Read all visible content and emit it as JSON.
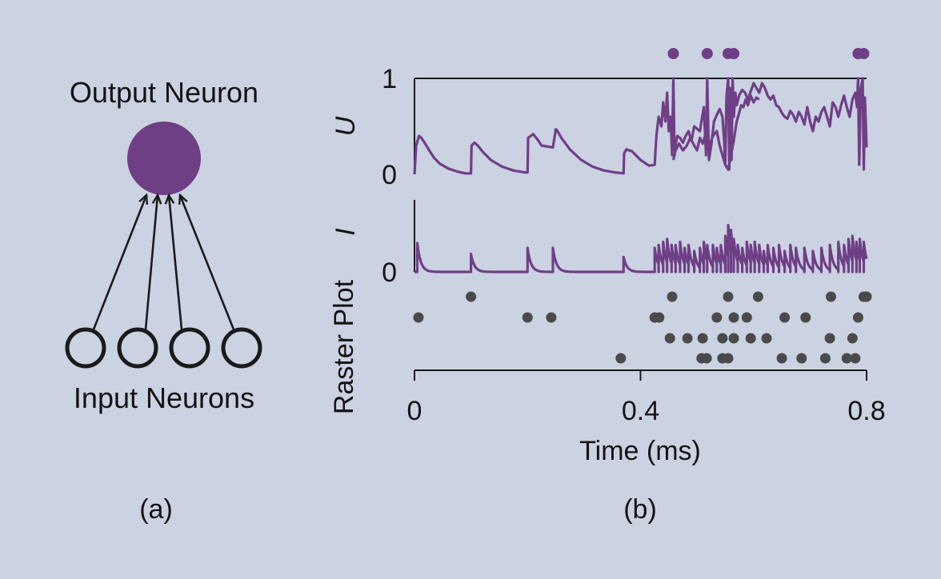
{
  "panel_a": {
    "output_label": "Output Neuron",
    "input_label": "Input Neurons",
    "caption": "(a)",
    "input_neuron_count": 4,
    "output_color": "#6e3f84",
    "line_color": "#1a1a1a"
  },
  "panel_b": {
    "caption": "(b)",
    "trace_color": "#6f3f86",
    "raster_color": "#4a4a4a"
  },
  "chart_data": [
    {
      "type": "line",
      "ylabel": "U",
      "xlim": [
        0,
        0.8
      ],
      "ylim": [
        0,
        1
      ],
      "yticks": [
        "0",
        "1"
      ],
      "output_spikes": [
        0.458,
        0.518,
        0.555,
        0.565,
        0.785,
        0.795
      ],
      "series": [
        {
          "x": [
            0,
            0.003,
            0.008,
            0.012,
            0.018,
            0.026,
            0.035,
            0.045,
            0.06,
            0.075,
            0.09,
            0.1,
            0.101,
            0.106,
            0.112,
            0.12,
            0.135,
            0.155,
            0.175,
            0.195,
            0.2,
            0.201,
            0.21,
            0.218,
            0.225,
            0.245,
            0.25,
            0.252,
            0.26,
            0.275,
            0.295,
            0.315,
            0.335,
            0.355,
            0.37,
            0.371,
            0.375,
            0.385,
            0.4,
            0.415,
            0.425,
            0.428,
            0.432,
            0.437,
            0.44,
            0.444,
            0.447,
            0.45,
            0.453,
            0.456,
            0.458,
            0.46,
            0.465,
            0.47,
            0.475,
            0.48,
            0.485,
            0.49,
            0.495,
            0.505,
            0.512,
            0.516,
            0.518,
            0.521,
            0.525,
            0.53,
            0.535,
            0.54,
            0.545,
            0.548,
            0.55,
            0.552,
            0.555,
            0.557,
            0.559,
            0.561,
            0.563,
            0.565,
            0.568,
            0.57,
            0.575,
            0.58,
            0.585,
            0.59,
            0.6,
            0.605,
            0.61,
            0.615,
            0.62,
            0.625,
            0.63,
            0.635,
            0.64,
            0.645,
            0.65,
            0.655,
            0.66,
            0.665,
            0.67,
            0.675,
            0.68,
            0.685,
            0.69,
            0.695,
            0.7,
            0.705,
            0.71,
            0.715,
            0.72,
            0.725,
            0.73,
            0.735,
            0.74,
            0.745,
            0.75,
            0.755,
            0.76,
            0.765,
            0.77,
            0.775,
            0.78,
            0.783,
            0.785,
            0.787,
            0.79,
            0.793,
            0.795,
            0.797,
            0.8
          ],
          "y": [
            0,
            0.3,
            0.4,
            0.38,
            0.33,
            0.25,
            0.17,
            0.11,
            0.06,
            0.03,
            0.01,
            0.01,
            0.3,
            0.33,
            0.3,
            0.24,
            0.15,
            0.08,
            0.04,
            0.02,
            0.02,
            0.38,
            0.42,
            0.36,
            0.3,
            0.28,
            0.47,
            0.46,
            0.38,
            0.26,
            0.15,
            0.08,
            0.04,
            0.02,
            0.01,
            0.22,
            0.26,
            0.24,
            0.15,
            0.09,
            0.1,
            0.4,
            0.6,
            0.5,
            0.75,
            0.55,
            0.85,
            0.45,
            0.6,
            0.2,
            1.0,
            0.25,
            0.4,
            0.38,
            0.33,
            0.4,
            0.45,
            0.35,
            0.5,
            0.45,
            0.7,
            0.2,
            1.0,
            0.15,
            0.3,
            0.55,
            0.62,
            0.68,
            0.6,
            0.35,
            0.1,
            0.8,
            1.0,
            0.05,
            0.9,
            0.15,
            1.0,
            0.6,
            0.85,
            0.72,
            0.83,
            0.88,
            0.85,
            0.78,
            0.95,
            0.9,
            0.85,
            0.95,
            0.9,
            0.82,
            0.78,
            0.82,
            0.72,
            0.7,
            0.64,
            0.6,
            0.58,
            0.66,
            0.62,
            0.55,
            0.65,
            0.6,
            0.52,
            0.7,
            0.55,
            0.45,
            0.6,
            0.55,
            0.65,
            0.7,
            0.6,
            0.5,
            0.75,
            0.7,
            0.6,
            0.72,
            0.82,
            0.7,
            0.6,
            0.78,
            0.85,
            0.7,
            1.0,
            0.1,
            0.9,
            1.0,
            0.05,
            0.8,
            0.28
          ]
        },
        {
          "x": [
            0.458,
            0.462,
            0.468,
            0.475,
            0.482,
            0.488,
            0.495,
            0.5,
            0.505,
            0.51,
            0.515,
            0.518,
            0.522,
            0.528,
            0.535,
            0.54,
            0.545,
            0.55,
            0.555,
            0.56,
            0.565,
            0.57,
            0.575,
            0.578,
            0.582,
            0.586,
            0.59,
            0.595,
            0.6,
            0.605,
            0.61
          ],
          "y": [
            0.15,
            0.25,
            0.32,
            0.25,
            0.3,
            0.38,
            0.3,
            0.25,
            0.38,
            0.32,
            0.42,
            0.35,
            0.3,
            0.4,
            0.45,
            0.3,
            0.2,
            0.1,
            0.05,
            0.2,
            0.35,
            0.55,
            0.65,
            0.72,
            0.7,
            0.78,
            0.72,
            0.82,
            0.75,
            0.8,
            0.78
          ]
        }
      ]
    },
    {
      "type": "line",
      "ylabel": "I",
      "xlim": [
        0,
        0.8
      ],
      "yticks": [
        "0"
      ],
      "ylim": [
        0,
        1
      ],
      "pulses": [
        {
          "t": 0.005,
          "a": 0.48
        },
        {
          "t": 0.1,
          "a": 0.3
        },
        {
          "t": 0.2,
          "a": 0.4
        },
        {
          "t": 0.245,
          "a": 0.4
        },
        {
          "t": 0.37,
          "a": 0.25
        },
        {
          "t": 0.425,
          "a": 0.4
        },
        {
          "t": 0.432,
          "a": 0.45
        },
        {
          "t": 0.44,
          "a": 0.5
        },
        {
          "t": 0.447,
          "a": 0.55
        },
        {
          "t": 0.455,
          "a": 0.45
        },
        {
          "t": 0.462,
          "a": 0.45
        },
        {
          "t": 0.47,
          "a": 0.5
        },
        {
          "t": 0.478,
          "a": 0.4
        },
        {
          "t": 0.485,
          "a": 0.45
        },
        {
          "t": 0.495,
          "a": 0.35
        },
        {
          "t": 0.505,
          "a": 0.4
        },
        {
          "t": 0.512,
          "a": 0.5
        },
        {
          "t": 0.518,
          "a": 0.45
        },
        {
          "t": 0.528,
          "a": 0.45
        },
        {
          "t": 0.535,
          "a": 0.4
        },
        {
          "t": 0.542,
          "a": 0.45
        },
        {
          "t": 0.55,
          "a": 0.6
        },
        {
          "t": 0.555,
          "a": 0.78
        },
        {
          "t": 0.56,
          "a": 0.7
        },
        {
          "t": 0.565,
          "a": 0.55
        },
        {
          "t": 0.572,
          "a": 0.45
        },
        {
          "t": 0.58,
          "a": 0.4
        },
        {
          "t": 0.588,
          "a": 0.5
        },
        {
          "t": 0.595,
          "a": 0.45
        },
        {
          "t": 0.602,
          "a": 0.5
        },
        {
          "t": 0.61,
          "a": 0.45
        },
        {
          "t": 0.618,
          "a": 0.35
        },
        {
          "t": 0.625,
          "a": 0.45
        },
        {
          "t": 0.635,
          "a": 0.4
        },
        {
          "t": 0.645,
          "a": 0.45
        },
        {
          "t": 0.655,
          "a": 0.35
        },
        {
          "t": 0.665,
          "a": 0.45
        },
        {
          "t": 0.675,
          "a": 0.4
        },
        {
          "t": 0.69,
          "a": 0.4
        },
        {
          "t": 0.705,
          "a": 0.35
        },
        {
          "t": 0.72,
          "a": 0.4
        },
        {
          "t": 0.735,
          "a": 0.45
        },
        {
          "t": 0.75,
          "a": 0.5
        },
        {
          "t": 0.76,
          "a": 0.45
        },
        {
          "t": 0.768,
          "a": 0.55
        },
        {
          "t": 0.775,
          "a": 0.6
        },
        {
          "t": 0.782,
          "a": 0.5
        },
        {
          "t": 0.788,
          "a": 0.55
        },
        {
          "t": 0.795,
          "a": 0.5
        }
      ]
    },
    {
      "type": "scatter",
      "ylabel": "Raster Plot",
      "xlabel": "Time (ms)",
      "xlim": [
        0,
        0.8
      ],
      "xticks": [
        "0",
        "0.4",
        "0.8"
      ],
      "rows": 4,
      "spikes": [
        {
          "t": 0.1,
          "row": 0
        },
        {
          "t": 0.456,
          "row": 0
        },
        {
          "t": 0.555,
          "row": 0
        },
        {
          "t": 0.608,
          "row": 0
        },
        {
          "t": 0.737,
          "row": 0
        },
        {
          "t": 0.795,
          "row": 0
        },
        {
          "t": 0.8,
          "row": 0
        },
        {
          "t": 0.007,
          "row": 1
        },
        {
          "t": 0.2,
          "row": 1
        },
        {
          "t": 0.242,
          "row": 1
        },
        {
          "t": 0.425,
          "row": 1
        },
        {
          "t": 0.433,
          "row": 1
        },
        {
          "t": 0.535,
          "row": 1
        },
        {
          "t": 0.565,
          "row": 1
        },
        {
          "t": 0.588,
          "row": 1
        },
        {
          "t": 0.655,
          "row": 1
        },
        {
          "t": 0.692,
          "row": 1
        },
        {
          "t": 0.785,
          "row": 1
        },
        {
          "t": 0.452,
          "row": 2
        },
        {
          "t": 0.483,
          "row": 2
        },
        {
          "t": 0.51,
          "row": 2
        },
        {
          "t": 0.545,
          "row": 2
        },
        {
          "t": 0.565,
          "row": 2
        },
        {
          "t": 0.595,
          "row": 2
        },
        {
          "t": 0.623,
          "row": 2
        },
        {
          "t": 0.735,
          "row": 2
        },
        {
          "t": 0.775,
          "row": 2
        },
        {
          "t": 0.365,
          "row": 3
        },
        {
          "t": 0.508,
          "row": 3
        },
        {
          "t": 0.517,
          "row": 3
        },
        {
          "t": 0.545,
          "row": 3
        },
        {
          "t": 0.555,
          "row": 3
        },
        {
          "t": 0.65,
          "row": 3
        },
        {
          "t": 0.685,
          "row": 3
        },
        {
          "t": 0.727,
          "row": 3
        },
        {
          "t": 0.765,
          "row": 3
        },
        {
          "t": 0.78,
          "row": 3
        }
      ]
    }
  ]
}
